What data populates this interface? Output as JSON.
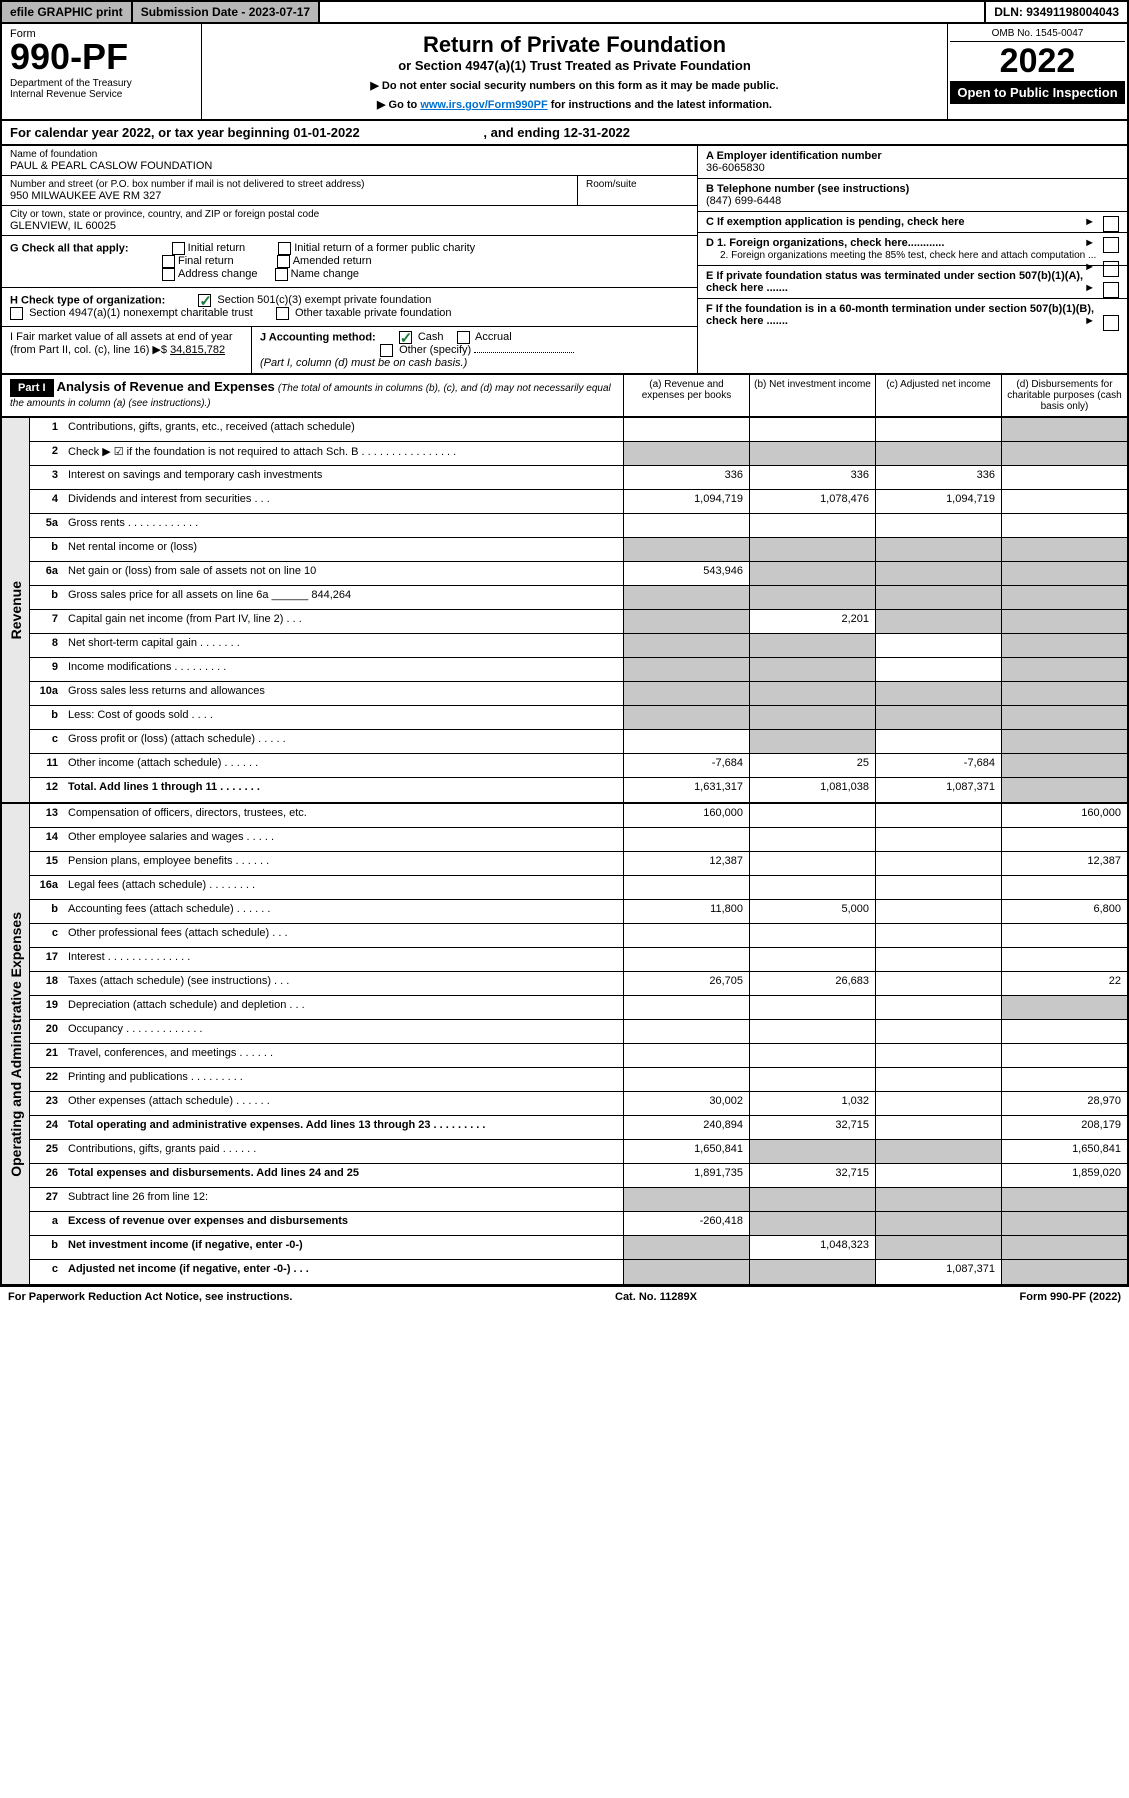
{
  "topbar": {
    "efile": "efile GRAPHIC print",
    "subdate_label": "Submission Date - 2023-07-17",
    "dln": "DLN: 93491198004043"
  },
  "header": {
    "form_word": "Form",
    "form_no": "990-PF",
    "dept": "Department of the Treasury\nInternal Revenue Service",
    "title": "Return of Private Foundation",
    "subtitle": "or Section 4947(a)(1) Trust Treated as Private Foundation",
    "note1": "▶ Do not enter social security numbers on this form as it may be made public.",
    "note2_pre": "▶ Go to ",
    "note2_link": "www.irs.gov/Form990PF",
    "note2_post": " for instructions and the latest information.",
    "omb": "OMB No. 1545-0047",
    "year": "2022",
    "open": "Open to Public Inspection"
  },
  "calendar": {
    "text_a": "For calendar year 2022, or tax year beginning 01-01-2022",
    "text_b": ", and ending 12-31-2022"
  },
  "info": {
    "name_lbl": "Name of foundation",
    "name": "PAUL & PEARL CASLOW FOUNDATION",
    "addr_lbl": "Number and street (or P.O. box number if mail is not delivered to street address)",
    "addr": "950 MILWAUKEE AVE RM 327",
    "room_lbl": "Room/suite",
    "city_lbl": "City or town, state or province, country, and ZIP or foreign postal code",
    "city": "GLENVIEW, IL  60025",
    "a_lbl": "A Employer identification number",
    "a_val": "36-6065830",
    "b_lbl": "B Telephone number (see instructions)",
    "b_val": "(847) 699-6448",
    "c_lbl": "C If exemption application is pending, check here",
    "d1_lbl": "D 1. Foreign organizations, check here............",
    "d2_lbl": "2. Foreign organizations meeting the 85% test, check here and attach computation ...",
    "e_lbl": "E  If private foundation status was terminated under section 507(b)(1)(A), check here .......",
    "f_lbl": "F  If the foundation is in a 60-month termination under section 507(b)(1)(B), check here .......",
    "g_lbl": "G Check all that apply:",
    "g_opts": [
      "Initial return",
      "Initial return of a former public charity",
      "Final return",
      "Amended return",
      "Address change",
      "Name change"
    ],
    "h_lbl": "H Check type of organization:",
    "h_opt1": "Section 501(c)(3) exempt private foundation",
    "h_opt2": "Section 4947(a)(1) nonexempt charitable trust",
    "h_opt3": "Other taxable private foundation",
    "i_lbl": "I Fair market value of all assets at end of year (from Part II, col. (c), line 16) ▶$",
    "i_val": "34,815,782",
    "j_lbl": "J Accounting method:",
    "j_cash": "Cash",
    "j_accrual": "Accrual",
    "j_other": "Other (specify)",
    "j_note": "(Part I, column (d) must be on cash basis.)"
  },
  "part1": {
    "label": "Part I",
    "title": "Analysis of Revenue and Expenses",
    "note": "(The total of amounts in columns (b), (c), and (d) may not necessarily equal the amounts in column (a) (see instructions).)",
    "col_a": "(a)   Revenue and expenses per books",
    "col_b": "(b)   Net investment income",
    "col_c": "(c)   Adjusted net income",
    "col_d": "(d)   Disbursements for charitable purposes (cash basis only)"
  },
  "sections": {
    "revenue": "Revenue",
    "expenses": "Operating and Administrative Expenses"
  },
  "rows": {
    "r1": {
      "ln": "1",
      "desc": "Contributions, gifts, grants, etc., received (attach schedule)",
      "a": "",
      "b": "",
      "c": "",
      "d": "grey"
    },
    "r2": {
      "ln": "2",
      "desc": "Check ▶ ☑ if the foundation is not required to attach Sch. B   . . . . . . . . . . . . . . . .",
      "a": "grey",
      "b": "grey",
      "c": "grey",
      "d": "grey"
    },
    "r3": {
      "ln": "3",
      "desc": "Interest on savings and temporary cash investments",
      "a": "336",
      "b": "336",
      "c": "336",
      "d": ""
    },
    "r4": {
      "ln": "4",
      "desc": "Dividends and interest from securities   .   .   .",
      "a": "1,094,719",
      "b": "1,078,476",
      "c": "1,094,719",
      "d": ""
    },
    "r5a": {
      "ln": "5a",
      "desc": "Gross rents   .   .   .   .   .   .   .   .   .   .   .   .",
      "a": "",
      "b": "",
      "c": "",
      "d": ""
    },
    "r5b": {
      "ln": "b",
      "desc": "Net rental income or (loss)",
      "a": "grey",
      "b": "grey",
      "c": "grey",
      "d": "grey"
    },
    "r6a": {
      "ln": "6a",
      "desc": "Net gain or (loss) from sale of assets not on line 10",
      "a": "543,946",
      "b": "grey",
      "c": "grey",
      "d": "grey"
    },
    "r6b": {
      "ln": "b",
      "desc": "Gross sales price for all assets on line 6a ______ 844,264",
      "a": "grey",
      "b": "grey",
      "c": "grey",
      "d": "grey"
    },
    "r7": {
      "ln": "7",
      "desc": "Capital gain net income (from Part IV, line 2)   .   .   .",
      "a": "grey",
      "b": "2,201",
      "c": "grey",
      "d": "grey"
    },
    "r8": {
      "ln": "8",
      "desc": "Net short-term capital gain   .   .   .   .   .   .   .",
      "a": "grey",
      "b": "grey",
      "c": "",
      "d": "grey"
    },
    "r9": {
      "ln": "9",
      "desc": "Income modifications   .   .   .   .   .   .   .   .   .",
      "a": "grey",
      "b": "grey",
      "c": "",
      "d": "grey"
    },
    "r10a": {
      "ln": "10a",
      "desc": "Gross sales less returns and allowances",
      "a": "grey",
      "b": "grey",
      "c": "grey",
      "d": "grey"
    },
    "r10b": {
      "ln": "b",
      "desc": "Less: Cost of goods sold   .   .   .   .",
      "a": "grey",
      "b": "grey",
      "c": "grey",
      "d": "grey"
    },
    "r10c": {
      "ln": "c",
      "desc": "Gross profit or (loss) (attach schedule)   .   .   .   .   .",
      "a": "",
      "b": "grey",
      "c": "",
      "d": "grey"
    },
    "r11": {
      "ln": "11",
      "desc": "Other income (attach schedule)   .   .   .   .   .   .",
      "a": "-7,684",
      "b": "25",
      "c": "-7,684",
      "d": "grey"
    },
    "r12": {
      "ln": "12",
      "desc": "Total. Add lines 1 through 11   .   .   .   .   .   .   .",
      "a": "1,631,317",
      "b": "1,081,038",
      "c": "1,087,371",
      "d": "grey",
      "bold": true
    },
    "r13": {
      "ln": "13",
      "desc": "Compensation of officers, directors, trustees, etc.",
      "a": "160,000",
      "b": "",
      "c": "",
      "d": "160,000"
    },
    "r14": {
      "ln": "14",
      "desc": "Other employee salaries and wages   .   .   .   .   .",
      "a": "",
      "b": "",
      "c": "",
      "d": ""
    },
    "r15": {
      "ln": "15",
      "desc": "Pension plans, employee benefits   .   .   .   .   .   .",
      "a": "12,387",
      "b": "",
      "c": "",
      "d": "12,387"
    },
    "r16a": {
      "ln": "16a",
      "desc": "Legal fees (attach schedule)   .   .   .   .   .   .   .   .",
      "a": "",
      "b": "",
      "c": "",
      "d": ""
    },
    "r16b": {
      "ln": "b",
      "desc": "Accounting fees (attach schedule)   .   .   .   .   .   .",
      "a": "11,800",
      "b": "5,000",
      "c": "",
      "d": "6,800"
    },
    "r16c": {
      "ln": "c",
      "desc": "Other professional fees (attach schedule)   .   .   .",
      "a": "",
      "b": "",
      "c": "",
      "d": ""
    },
    "r17": {
      "ln": "17",
      "desc": "Interest   .   .   .   .   .   .   .   .   .   .   .   .   .   .",
      "a": "",
      "b": "",
      "c": "",
      "d": ""
    },
    "r18": {
      "ln": "18",
      "desc": "Taxes (attach schedule) (see instructions)   .   .   .",
      "a": "26,705",
      "b": "26,683",
      "c": "",
      "d": "22"
    },
    "r19": {
      "ln": "19",
      "desc": "Depreciation (attach schedule) and depletion   .   .   .",
      "a": "",
      "b": "",
      "c": "",
      "d": "grey"
    },
    "r20": {
      "ln": "20",
      "desc": "Occupancy   .   .   .   .   .   .   .   .   .   .   .   .   .",
      "a": "",
      "b": "",
      "c": "",
      "d": ""
    },
    "r21": {
      "ln": "21",
      "desc": "Travel, conferences, and meetings   .   .   .   .   .   .",
      "a": "",
      "b": "",
      "c": "",
      "d": ""
    },
    "r22": {
      "ln": "22",
      "desc": "Printing and publications   .   .   .   .   .   .   .   .   .",
      "a": "",
      "b": "",
      "c": "",
      "d": ""
    },
    "r23": {
      "ln": "23",
      "desc": "Other expenses (attach schedule)   .   .   .   .   .   .",
      "a": "30,002",
      "b": "1,032",
      "c": "",
      "d": "28,970"
    },
    "r24": {
      "ln": "24",
      "desc": "Total operating and administrative expenses. Add lines 13 through 23   .   .   .   .   .   .   .   .   .",
      "a": "240,894",
      "b": "32,715",
      "c": "",
      "d": "208,179",
      "bold": true
    },
    "r25": {
      "ln": "25",
      "desc": "Contributions, gifts, grants paid   .   .   .   .   .   .",
      "a": "1,650,841",
      "b": "grey",
      "c": "grey",
      "d": "1,650,841"
    },
    "r26": {
      "ln": "26",
      "desc": "Total expenses and disbursements. Add lines 24 and 25",
      "a": "1,891,735",
      "b": "32,715",
      "c": "",
      "d": "1,859,020",
      "bold": true
    },
    "r27": {
      "ln": "27",
      "desc": "Subtract line 26 from line 12:",
      "a": "grey",
      "b": "grey",
      "c": "grey",
      "d": "grey"
    },
    "r27a": {
      "ln": "a",
      "desc": "Excess of revenue over expenses and disbursements",
      "a": "-260,418",
      "b": "grey",
      "c": "grey",
      "d": "grey",
      "bold": true
    },
    "r27b": {
      "ln": "b",
      "desc": "Net investment income (if negative, enter -0-)",
      "a": "grey",
      "b": "1,048,323",
      "c": "grey",
      "d": "grey",
      "bold": true
    },
    "r27c": {
      "ln": "c",
      "desc": "Adjusted net income (if negative, enter -0-)   .   .   .",
      "a": "grey",
      "b": "grey",
      "c": "1,087,371",
      "d": "grey",
      "bold": true
    }
  },
  "footer": {
    "left": "For Paperwork Reduction Act Notice, see instructions.",
    "mid": "Cat. No. 11289X",
    "right": "Form 990-PF (2022)"
  }
}
